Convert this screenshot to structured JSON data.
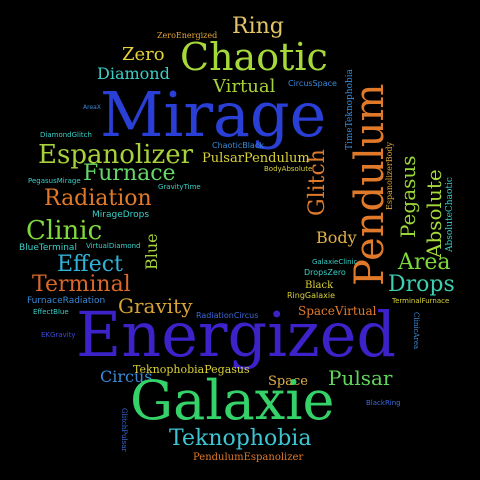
{
  "words": {
    "mirage": {
      "text": "Mirage",
      "color": "#2a3fd6"
    },
    "energized": {
      "text": "Energized",
      "color": "#3b22c9"
    },
    "galaxie": {
      "text": "Galaxie",
      "color": "#35d26a"
    },
    "chaotic": {
      "text": "Chaotic",
      "color": "#a6d83a"
    },
    "pendulum": {
      "text": "Pendulum",
      "color": "#e07a2a"
    },
    "espanolizer": {
      "text": "Espanolizer",
      "color": "#a8d23a"
    },
    "furnace": {
      "text": "Furnace",
      "color": "#67d66a"
    },
    "radiation": {
      "text": "Radiation",
      "color": "#e07a2a"
    },
    "clinic": {
      "text": "Clinic",
      "color": "#7ed93a"
    },
    "effect": {
      "text": "Effect",
      "color": "#31b3d8"
    },
    "terminal": {
      "text": "Terminal",
      "color": "#d9682a"
    },
    "gravity": {
      "text": "Gravity",
      "color": "#d7a336"
    },
    "teknophobia": {
      "text": "Teknophobia",
      "color": "#3ec5d4"
    },
    "pulsar": {
      "text": "Pulsar",
      "color": "#5fd55a"
    },
    "ring": {
      "text": "Ring",
      "color": "#e3c46a"
    },
    "zero": {
      "text": "Zero",
      "color": "#e6d23a"
    },
    "diamond": {
      "text": "Diamond",
      "color": "#3ad0c8"
    },
    "virtual": {
      "text": "Virtual",
      "color": "#a8d23a"
    },
    "glitch": {
      "text": "Glitch",
      "color": "#e07a2a"
    },
    "pegasus": {
      "text": "Pegasus",
      "color": "#9bd63a"
    },
    "absolute": {
      "text": "Absolute",
      "color": "#a6d83a"
    },
    "area": {
      "text": "Area",
      "color": "#7ed93a"
    },
    "drops": {
      "text": "Drops",
      "color": "#3ad0b0"
    },
    "body": {
      "text": "Body",
      "color": "#e3b048"
    },
    "blue": {
      "text": "Blue",
      "color": "#a8d23a"
    },
    "circus": {
      "text": "Circus",
      "color": "#3a8ad8"
    },
    "space": {
      "text": "Space",
      "color": "#e3b048"
    },
    "pulsarPendulum": {
      "text": "PulsarPendulum",
      "color": "#d9d23a"
    },
    "zeroEnergized": {
      "text": "ZeroEnergized",
      "color": "#e3a73a"
    },
    "circusSpace": {
      "text": "CircusSpace",
      "color": "#3a8ad8"
    },
    "timeTeknophobia": {
      "text": "TimeTeknophobia",
      "color": "#3a8ad8"
    },
    "espanolizerBody": {
      "text": "EspanolizerBody",
      "color": "#e3a73a"
    },
    "absoluteChaotic": {
      "text": "AbsoluteChaotic",
      "color": "#3ad0c8"
    },
    "chaoticBlack": {
      "text": "ChaoticBlack",
      "color": "#3a8ad8"
    },
    "bodyAbsolute": {
      "text": "BodyAbsolute",
      "color": "#d9d23a"
    },
    "gravityTime": {
      "text": "GravityTime",
      "color": "#3ad0c8"
    },
    "mirageDrops": {
      "text": "MirageDrops",
      "color": "#3ad0c8"
    },
    "blueTerminal": {
      "text": "BlueTerminal",
      "color": "#3ad0c8"
    },
    "virtualDiamond": {
      "text": "VirtualDiamond",
      "color": "#3ad0c8"
    },
    "diamondGlitch": {
      "text": "DiamondGlitch",
      "color": "#3ad0c8"
    },
    "pegasusMirage": {
      "text": "PegasusMirage",
      "color": "#3ad0c8"
    },
    "area2": {
      "text": "AreaX",
      "color": "#3a8ad8"
    },
    "galaxieClinic": {
      "text": "GalaxieClinic",
      "color": "#3ad0c8"
    },
    "dropsZero": {
      "text": "DropsZero",
      "color": "#3ad0c8"
    },
    "black": {
      "text": "Black",
      "color": "#d9d23a"
    },
    "ringGalaxie": {
      "text": "RingGalaxie",
      "color": "#d9d23a"
    },
    "terminalFurnace": {
      "text": "TerminalFurnace",
      "color": "#d9d23a"
    },
    "furnaceRadiation": {
      "text": "FurnaceRadiation",
      "color": "#3a8ad8"
    },
    "effectBlue": {
      "text": "EffectBlue",
      "color": "#3ad0c8"
    },
    "radiationCircus": {
      "text": "RadiationCircus",
      "color": "#3a6ad8"
    },
    "spaceVirtual": {
      "text": "SpaceVirtual",
      "color": "#e07a2a"
    },
    "ekGravity": {
      "text": "EKGravity",
      "color": "#3a4ad8"
    },
    "teknophobiaPegasus": {
      "text": "TeknophobiaPegasus",
      "color": "#d9d23a"
    },
    "clinicArea": {
      "text": "ClinicArea",
      "color": "#3a8ad8"
    },
    "blackRing": {
      "text": "BlackRing",
      "color": "#3a6ad8"
    },
    "glitchPulsar": {
      "text": "GlitchPulsar",
      "color": "#3a6ad8"
    },
    "pendulumEspanolizer": {
      "text": "PendulumEspanolizer",
      "color": "#e07a2a"
    }
  }
}
